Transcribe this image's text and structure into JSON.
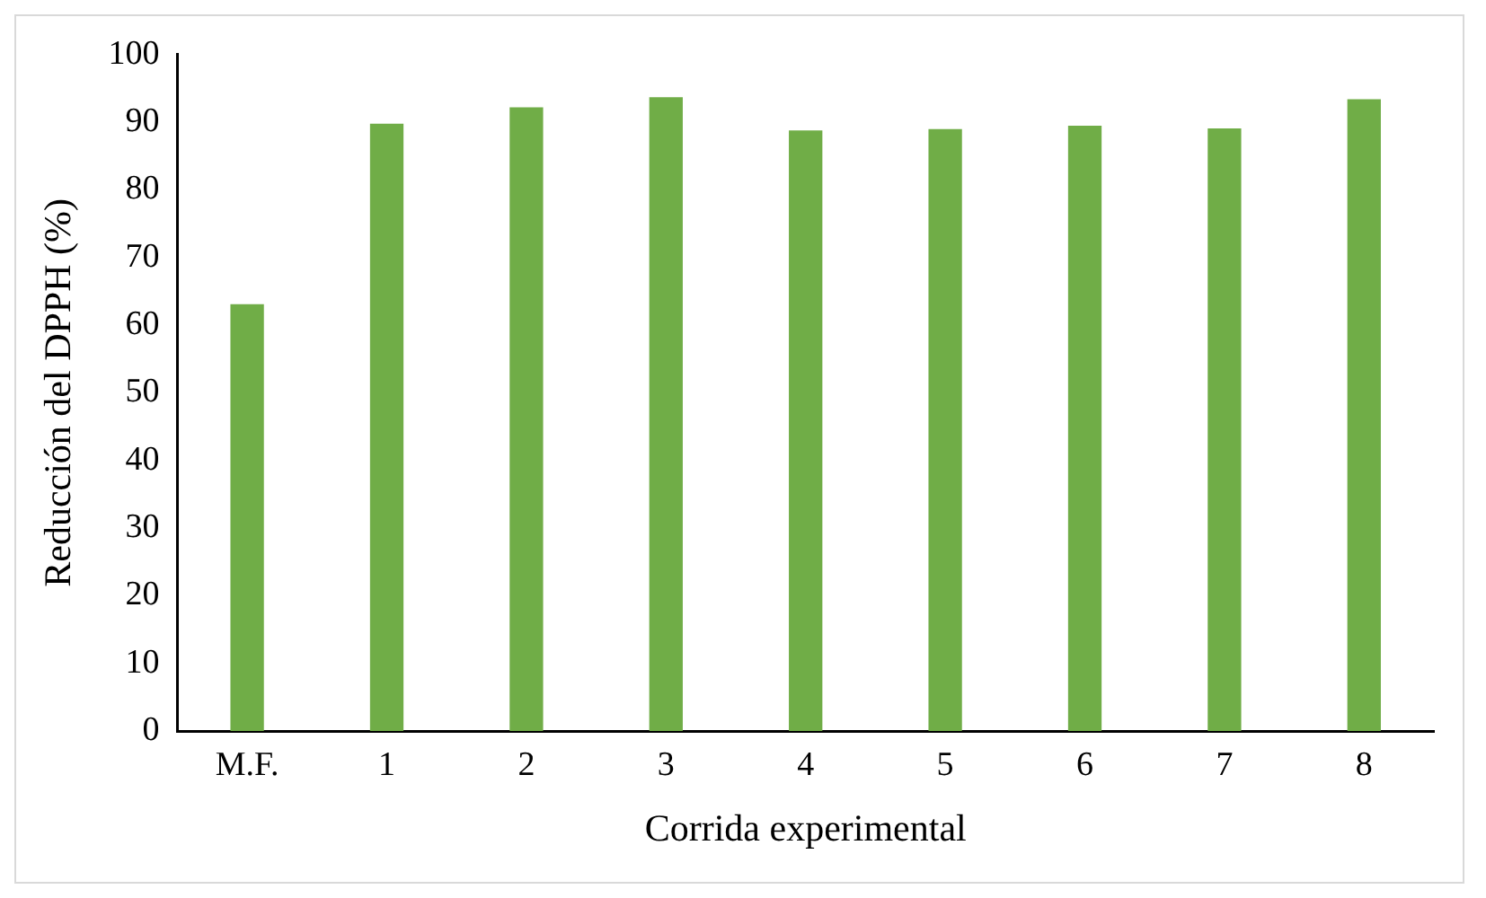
{
  "chart_data": {
    "type": "bar",
    "xlabel": "Corrida experimental",
    "ylabel": "Reducción del DPPH (%)",
    "categories": [
      "M.F.",
      "1",
      "2",
      "3",
      "4",
      "5",
      "6",
      "7",
      "8"
    ],
    "values": [
      63.1,
      89.8,
      92.2,
      93.7,
      88.8,
      89.0,
      89.5,
      89.1,
      93.4
    ],
    "color": "#70ad47",
    "ylim": [
      0,
      100
    ],
    "yticks": [
      0,
      10,
      20,
      30,
      40,
      50,
      60,
      70,
      80,
      90,
      100
    ],
    "grid": false,
    "legend": false
  }
}
